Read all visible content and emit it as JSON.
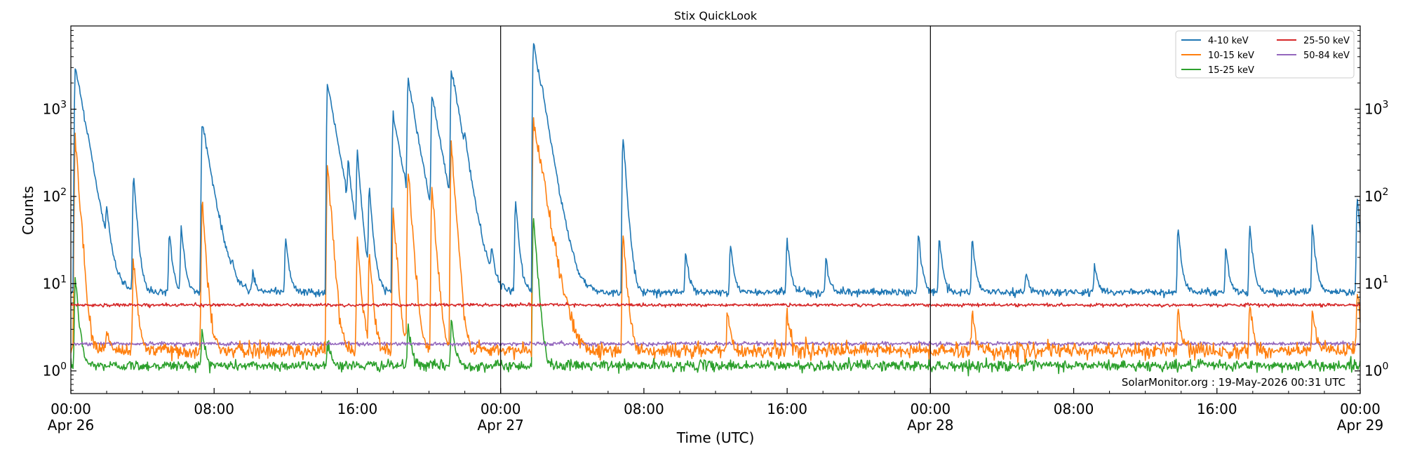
{
  "chart_data": {
    "type": "line",
    "title": "Stix QuickLook",
    "xlabel": "Time (UTC)",
    "ylabel": "Counts",
    "yscale": "log",
    "ylim": [
      0.55,
      9000
    ],
    "xlim": [
      "2026-04-26T00:00",
      "2026-04-29T00:00"
    ],
    "x_ticks": [
      {
        "time": "2026-04-26T00:00",
        "line1": "00:00",
        "line2": "Apr 26"
      },
      {
        "time": "2026-04-26T08:00",
        "line1": "08:00",
        "line2": ""
      },
      {
        "time": "2026-04-26T16:00",
        "line1": "16:00",
        "line2": ""
      },
      {
        "time": "2026-04-27T00:00",
        "line1": "00:00",
        "line2": "Apr 27"
      },
      {
        "time": "2026-04-27T08:00",
        "line1": "08:00",
        "line2": ""
      },
      {
        "time": "2026-04-27T16:00",
        "line1": "16:00",
        "line2": ""
      },
      {
        "time": "2026-04-28T00:00",
        "line1": "00:00",
        "line2": "Apr 28"
      },
      {
        "time": "2026-04-28T08:00",
        "line1": "08:00",
        "line2": ""
      },
      {
        "time": "2026-04-28T16:00",
        "line1": "16:00",
        "line2": ""
      },
      {
        "time": "2026-04-29T00:00",
        "line1": "00:00",
        "line2": "Apr 29"
      }
    ],
    "y_ticks": [
      {
        "value": 1,
        "base": "10",
        "exp": "0"
      },
      {
        "value": 10,
        "base": "10",
        "exp": "1"
      },
      {
        "value": 100,
        "base": "10",
        "exp": "2"
      },
      {
        "value": 1000,
        "base": "10",
        "exp": "3"
      }
    ],
    "day_separators": [
      "2026-04-27T00:00",
      "2026-04-28T00:00"
    ],
    "grid": false,
    "legend_position": "top-right",
    "annotation": "SolarMonitor.org : 19-May-2026 00:31 UTC",
    "series": [
      {
        "name": "4-10 keV",
        "color": "#1f77b4",
        "baseline": 8,
        "noise": 0.045,
        "events": [
          {
            "time": "2026-04-26T00:15",
            "peak": 3200
          },
          {
            "time": "2026-04-26T01:00",
            "peak": 70
          },
          {
            "time": "2026-04-26T02:00",
            "peak": 52
          },
          {
            "time": "2026-04-26T03:30",
            "peak": 180
          },
          {
            "time": "2026-04-26T05:30",
            "peak": 38
          },
          {
            "time": "2026-04-26T06:10",
            "peak": 45
          },
          {
            "time": "2026-04-26T07:20",
            "peak": 700
          },
          {
            "time": "2026-04-26T09:00",
            "peak": 12
          },
          {
            "time": "2026-04-26T10:10",
            "peak": 13
          },
          {
            "time": "2026-04-26T12:00",
            "peak": 35
          },
          {
            "time": "2026-04-26T14:20",
            "peak": 2000
          },
          {
            "time": "2026-04-26T15:30",
            "peak": 180
          },
          {
            "time": "2026-04-26T16:00",
            "peak": 300
          },
          {
            "time": "2026-04-26T16:40",
            "peak": 120
          },
          {
            "time": "2026-04-26T18:00",
            "peak": 900
          },
          {
            "time": "2026-04-26T18:50",
            "peak": 2100
          },
          {
            "time": "2026-04-26T20:10",
            "peak": 1400
          },
          {
            "time": "2026-04-26T21:15",
            "peak": 2800
          },
          {
            "time": "2026-04-26T22:00",
            "peak": 180
          },
          {
            "time": "2026-04-26T23:30",
            "peak": 20
          },
          {
            "time": "2026-04-27T00:50",
            "peak": 90
          },
          {
            "time": "2026-04-27T01:50",
            "peak": 5800
          },
          {
            "time": "2026-04-27T02:20",
            "peak": 290
          },
          {
            "time": "2026-04-27T06:50",
            "peak": 480
          },
          {
            "time": "2026-04-27T10:20",
            "peak": 23
          },
          {
            "time": "2026-04-27T12:50",
            "peak": 28
          },
          {
            "time": "2026-04-27T16:00",
            "peak": 32
          },
          {
            "time": "2026-04-27T18:10",
            "peak": 20
          },
          {
            "time": "2026-04-27T23:20",
            "peak": 38
          },
          {
            "time": "2026-04-28T00:30",
            "peak": 35
          },
          {
            "time": "2026-04-28T02:20",
            "peak": 33
          },
          {
            "time": "2026-04-28T05:20",
            "peak": 14
          },
          {
            "time": "2026-04-28T09:10",
            "peak": 17
          },
          {
            "time": "2026-04-28T13:50",
            "peak": 45
          },
          {
            "time": "2026-04-28T16:30",
            "peak": 26
          },
          {
            "time": "2026-04-28T17:50",
            "peak": 48
          },
          {
            "time": "2026-04-28T21:20",
            "peak": 48
          },
          {
            "time": "2026-04-28T23:50",
            "peak": 100
          }
        ]
      },
      {
        "name": "10-15 keV",
        "color": "#ff7f0e",
        "baseline": 1.7,
        "noise": 0.1,
        "events": [
          {
            "time": "2026-04-26T00:15",
            "peak": 480
          },
          {
            "time": "2026-04-26T02:00",
            "peak": 3
          },
          {
            "time": "2026-04-26T03:30",
            "peak": 20
          },
          {
            "time": "2026-04-26T07:20",
            "peak": 80
          },
          {
            "time": "2026-04-26T14:20",
            "peak": 250
          },
          {
            "time": "2026-04-26T16:00",
            "peak": 35
          },
          {
            "time": "2026-04-26T16:40",
            "peak": 22
          },
          {
            "time": "2026-04-26T18:00",
            "peak": 70
          },
          {
            "time": "2026-04-26T18:50",
            "peak": 220
          },
          {
            "time": "2026-04-26T20:10",
            "peak": 130
          },
          {
            "time": "2026-04-26T21:15",
            "peak": 380
          },
          {
            "time": "2026-04-27T01:50",
            "peak": 700
          },
          {
            "time": "2026-04-27T02:20",
            "peak": 30
          },
          {
            "time": "2026-04-27T06:50",
            "peak": 40
          },
          {
            "time": "2026-04-27T12:40",
            "peak": 5
          },
          {
            "time": "2026-04-27T16:00",
            "peak": 5
          },
          {
            "time": "2026-04-28T02:20",
            "peak": 5
          },
          {
            "time": "2026-04-28T13:50",
            "peak": 5
          },
          {
            "time": "2026-04-28T17:50",
            "peak": 6
          },
          {
            "time": "2026-04-28T21:20",
            "peak": 5
          },
          {
            "time": "2026-04-28T23:50",
            "peak": 8
          }
        ]
      },
      {
        "name": "15-25 keV",
        "color": "#2ca02c",
        "baseline": 1.15,
        "noise": 0.07,
        "events": [
          {
            "time": "2026-04-26T00:15",
            "peak": 12
          },
          {
            "time": "2026-04-26T07:20",
            "peak": 3
          },
          {
            "time": "2026-04-26T14:20",
            "peak": 2.5
          },
          {
            "time": "2026-04-26T18:50",
            "peak": 3.5
          },
          {
            "time": "2026-04-26T21:15",
            "peak": 4
          },
          {
            "time": "2026-04-27T01:50",
            "peak": 60
          }
        ]
      },
      {
        "name": "25-50 keV",
        "color": "#d62728",
        "baseline": 5.7,
        "noise": 0.02,
        "events": []
      },
      {
        "name": "50-84 keV",
        "color": "#9467bd",
        "baseline": 2.05,
        "noise": 0.025,
        "events": []
      }
    ]
  }
}
